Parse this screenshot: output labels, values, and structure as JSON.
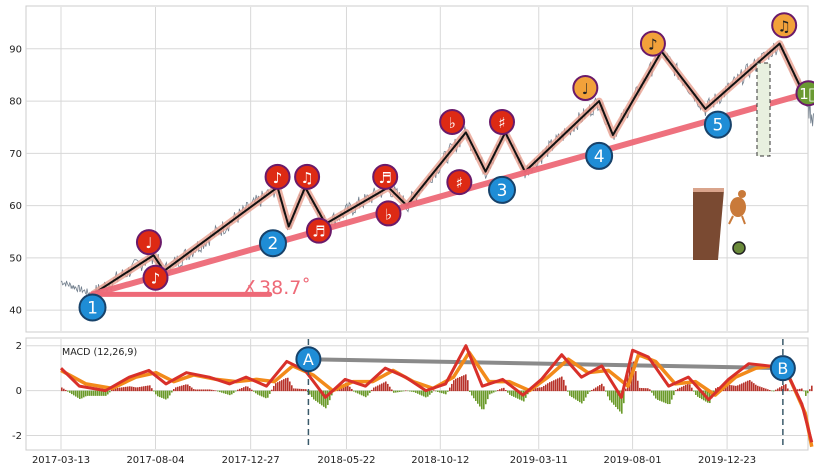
{
  "chart_data": [
    {
      "type": "line",
      "ylim": [
        36,
        98
      ],
      "y_ticks": [
        40,
        50,
        60,
        70,
        80,
        90
      ],
      "grid": true,
      "colors": {
        "price": "#5a6a7a",
        "zigzag": "#111111",
        "zigzag_halo": "#e8a090",
        "trend": "#ee6a78",
        "blue_marker": "#1f8dd6",
        "red_marker": "#dd2a14",
        "orange_marker": "#f2a13a",
        "green_marker": "#6a9a32"
      },
      "angle_label": "∡38.7˚",
      "zigzag_points": [
        {
          "date": "2017-04-30",
          "value": 43.0
        },
        {
          "date": "2017-08-01",
          "value": 50.5
        },
        {
          "date": "2017-08-17",
          "value": 47.5
        },
        {
          "date": "2018-02-06",
          "value": 63.5
        },
        {
          "date": "2018-02-23",
          "value": 56.0
        },
        {
          "date": "2018-03-20",
          "value": 63.5
        },
        {
          "date": "2018-04-20",
          "value": 56.5
        },
        {
          "date": "2018-07-25",
          "value": 63.5
        },
        {
          "date": "2018-08-22",
          "value": 60.0
        },
        {
          "date": "2018-11-20",
          "value": 74.0
        },
        {
          "date": "2018-12-20",
          "value": 66.5
        },
        {
          "date": "2019-01-19",
          "value": 74.0
        },
        {
          "date": "2019-02-18",
          "value": 66.5
        },
        {
          "date": "2019-06-11",
          "value": 80.0
        },
        {
          "date": "2019-07-02",
          "value": 73.5
        },
        {
          "date": "2019-09-14",
          "value": 89.5
        },
        {
          "date": "2019-11-20",
          "value": 78.5
        },
        {
          "date": "2020-03-12",
          "value": 91.0
        },
        {
          "date": "2020-04-23",
          "value": 80.0
        }
      ],
      "trend_line": [
        {
          "date": "2017-04-30",
          "value": 43.0
        },
        {
          "date": "2020-04-23",
          "value": 81.5
        }
      ],
      "angle_base": [
        {
          "date": "2017-04-30",
          "value": 43.0
        },
        {
          "date": "2018-01-25",
          "value": 43.0
        }
      ],
      "markers": [
        {
          "label": "1",
          "date": "2017-04-30",
          "value": 40.5,
          "kind": "blue"
        },
        {
          "label": "♩",
          "date": "2017-07-25",
          "value": 53.0,
          "kind": "red"
        },
        {
          "label": "♪",
          "date": "2017-08-04",
          "value": 46.2,
          "kind": "red"
        },
        {
          "label": "2",
          "date": "2018-01-30",
          "value": 52.8,
          "kind": "blue"
        },
        {
          "label": "♪",
          "date": "2018-02-06",
          "value": 65.5,
          "kind": "red"
        },
        {
          "label": "♫",
          "date": "2018-03-23",
          "value": 65.5,
          "kind": "red"
        },
        {
          "label": "♬",
          "date": "2018-04-10",
          "value": 55.2,
          "kind": "red"
        },
        {
          "label": "♬",
          "date": "2018-07-20",
          "value": 65.5,
          "kind": "red"
        },
        {
          "label": "♭",
          "date": "2018-07-25",
          "value": 58.5,
          "kind": "red"
        },
        {
          "label": "♭",
          "date": "2018-10-30",
          "value": 76.0,
          "kind": "red"
        },
        {
          "label": "♯",
          "date": "2018-11-10",
          "value": 64.5,
          "kind": "red"
        },
        {
          "label": "♯",
          "date": "2019-01-14",
          "value": 76.0,
          "kind": "red"
        },
        {
          "label": "3",
          "date": "2019-01-14",
          "value": 63.0,
          "kind": "blue"
        },
        {
          "label": "4",
          "date": "2019-06-11",
          "value": 69.5,
          "kind": "blue"
        },
        {
          "label": "♩",
          "date": "2019-05-21",
          "value": 82.5,
          "kind": "orange"
        },
        {
          "label": "♪",
          "date": "2019-09-01",
          "value": 91.0,
          "kind": "orange"
        },
        {
          "label": "5",
          "date": "2019-12-09",
          "value": 75.5,
          "kind": "blue"
        },
        {
          "label": "♫",
          "date": "2020-03-19",
          "value": 94.5,
          "kind": "orange"
        },
        {
          "label": "1⃣",
          "date": "2020-04-25",
          "value": 81.5,
          "kind": "green"
        }
      ]
    },
    {
      "type": "line",
      "title": "MACD (12,26,9)",
      "ylim": [
        -2.6,
        2.3
      ],
      "y_ticks": [
        2,
        0,
        -2
      ],
      "grid": true,
      "x_ticks": [
        "2017-03-13",
        "2017-08-04",
        "2017-12-27",
        "2018-05-22",
        "2018-10-12",
        "2019-03-11",
        "2019-08-01",
        "2019-12-23"
      ],
      "vertical_markers": [
        {
          "label": "A",
          "date": "2018-03-25",
          "value": 1.4
        },
        {
          "label": "B",
          "date": "2020-03-17",
          "value": 1.0
        }
      ],
      "connector": [
        {
          "date": "2018-03-25",
          "value": 1.4
        },
        {
          "date": "2020-03-17",
          "value": 1.0
        }
      ],
      "macd_line": [
        {
          "date": "2017-03-13",
          "value": 1.0
        },
        {
          "date": "2017-04-10",
          "value": 0.2
        },
        {
          "date": "2017-05-20",
          "value": 0.0
        },
        {
          "date": "2017-06-25",
          "value": 0.6
        },
        {
          "date": "2017-07-25",
          "value": 0.9
        },
        {
          "date": "2017-08-20",
          "value": 0.3
        },
        {
          "date": "2017-09-20",
          "value": 0.8
        },
        {
          "date": "2017-10-25",
          "value": 0.6
        },
        {
          "date": "2017-11-25",
          "value": 0.3
        },
        {
          "date": "2017-12-20",
          "value": 0.6
        },
        {
          "date": "2018-01-20",
          "value": 0.2
        },
        {
          "date": "2018-02-20",
          "value": 1.3
        },
        {
          "date": "2018-03-20",
          "value": 0.9
        },
        {
          "date": "2018-04-20",
          "value": -0.3
        },
        {
          "date": "2018-05-20",
          "value": 0.5
        },
        {
          "date": "2018-06-20",
          "value": 0.2
        },
        {
          "date": "2018-07-20",
          "value": 1.0
        },
        {
          "date": "2018-08-20",
          "value": 0.6
        },
        {
          "date": "2018-09-20",
          "value": 0.0
        },
        {
          "date": "2018-10-20",
          "value": 0.3
        },
        {
          "date": "2018-11-20",
          "value": 2.0
        },
        {
          "date": "2018-12-15",
          "value": 0.2
        },
        {
          "date": "2019-01-15",
          "value": 0.5
        },
        {
          "date": "2019-02-15",
          "value": -0.2
        },
        {
          "date": "2019-03-15",
          "value": 0.5
        },
        {
          "date": "2019-04-15",
          "value": 1.6
        },
        {
          "date": "2019-05-15",
          "value": 0.6
        },
        {
          "date": "2019-06-15",
          "value": 1.1
        },
        {
          "date": "2019-07-15",
          "value": -0.3
        },
        {
          "date": "2019-08-01",
          "value": 1.8
        },
        {
          "date": "2019-08-25",
          "value": 1.5
        },
        {
          "date": "2019-09-25",
          "value": 0.2
        },
        {
          "date": "2019-10-25",
          "value": 0.6
        },
        {
          "date": "2019-11-25",
          "value": -0.4
        },
        {
          "date": "2019-12-25",
          "value": 0.5
        },
        {
          "date": "2020-01-25",
          "value": 1.2
        },
        {
          "date": "2020-02-25",
          "value": 1.1
        },
        {
          "date": "2020-03-20",
          "value": 1.0
        },
        {
          "date": "2020-04-15",
          "value": -0.6
        },
        {
          "date": "2020-04-30",
          "value": -2.3
        }
      ],
      "signal_line": [
        {
          "date": "2017-03-13",
          "value": 0.9
        },
        {
          "date": "2017-04-20",
          "value": 0.3
        },
        {
          "date": "2017-05-30",
          "value": 0.1
        },
        {
          "date": "2017-07-05",
          "value": 0.6
        },
        {
          "date": "2017-08-05",
          "value": 0.8
        },
        {
          "date": "2017-09-01",
          "value": 0.4
        },
        {
          "date": "2017-10-01",
          "value": 0.7
        },
        {
          "date": "2017-11-05",
          "value": 0.5
        },
        {
          "date": "2017-12-05",
          "value": 0.4
        },
        {
          "date": "2018-01-05",
          "value": 0.5
        },
        {
          "date": "2018-02-01",
          "value": 0.4
        },
        {
          "date": "2018-03-01",
          "value": 1.1
        },
        {
          "date": "2018-04-01",
          "value": 0.7
        },
        {
          "date": "2018-05-01",
          "value": 0.0
        },
        {
          "date": "2018-06-01",
          "value": 0.4
        },
        {
          "date": "2018-07-01",
          "value": 0.4
        },
        {
          "date": "2018-08-01",
          "value": 0.9
        },
        {
          "date": "2018-09-01",
          "value": 0.4
        },
        {
          "date": "2018-10-01",
          "value": 0.1
        },
        {
          "date": "2018-11-01",
          "value": 0.6
        },
        {
          "date": "2018-11-25",
          "value": 1.7
        },
        {
          "date": "2018-12-25",
          "value": 0.4
        },
        {
          "date": "2019-01-25",
          "value": 0.4
        },
        {
          "date": "2019-02-25",
          "value": 0.0
        },
        {
          "date": "2019-03-25",
          "value": 0.6
        },
        {
          "date": "2019-04-25",
          "value": 1.4
        },
        {
          "date": "2019-05-25",
          "value": 0.8
        },
        {
          "date": "2019-06-25",
          "value": 0.9
        },
        {
          "date": "2019-07-25",
          "value": 0.2
        },
        {
          "date": "2019-08-10",
          "value": 1.6
        },
        {
          "date": "2019-09-05",
          "value": 1.3
        },
        {
          "date": "2019-10-05",
          "value": 0.3
        },
        {
          "date": "2019-11-05",
          "value": 0.4
        },
        {
          "date": "2019-12-05",
          "value": -0.2
        },
        {
          "date": "2020-01-05",
          "value": 0.6
        },
        {
          "date": "2020-02-05",
          "value": 1.0
        },
        {
          "date": "2020-03-01",
          "value": 1.1
        },
        {
          "date": "2020-03-25",
          "value": 0.7
        },
        {
          "date": "2020-04-20",
          "value": -1.0
        },
        {
          "date": "2020-04-30",
          "value": -2.5
        }
      ]
    }
  ]
}
